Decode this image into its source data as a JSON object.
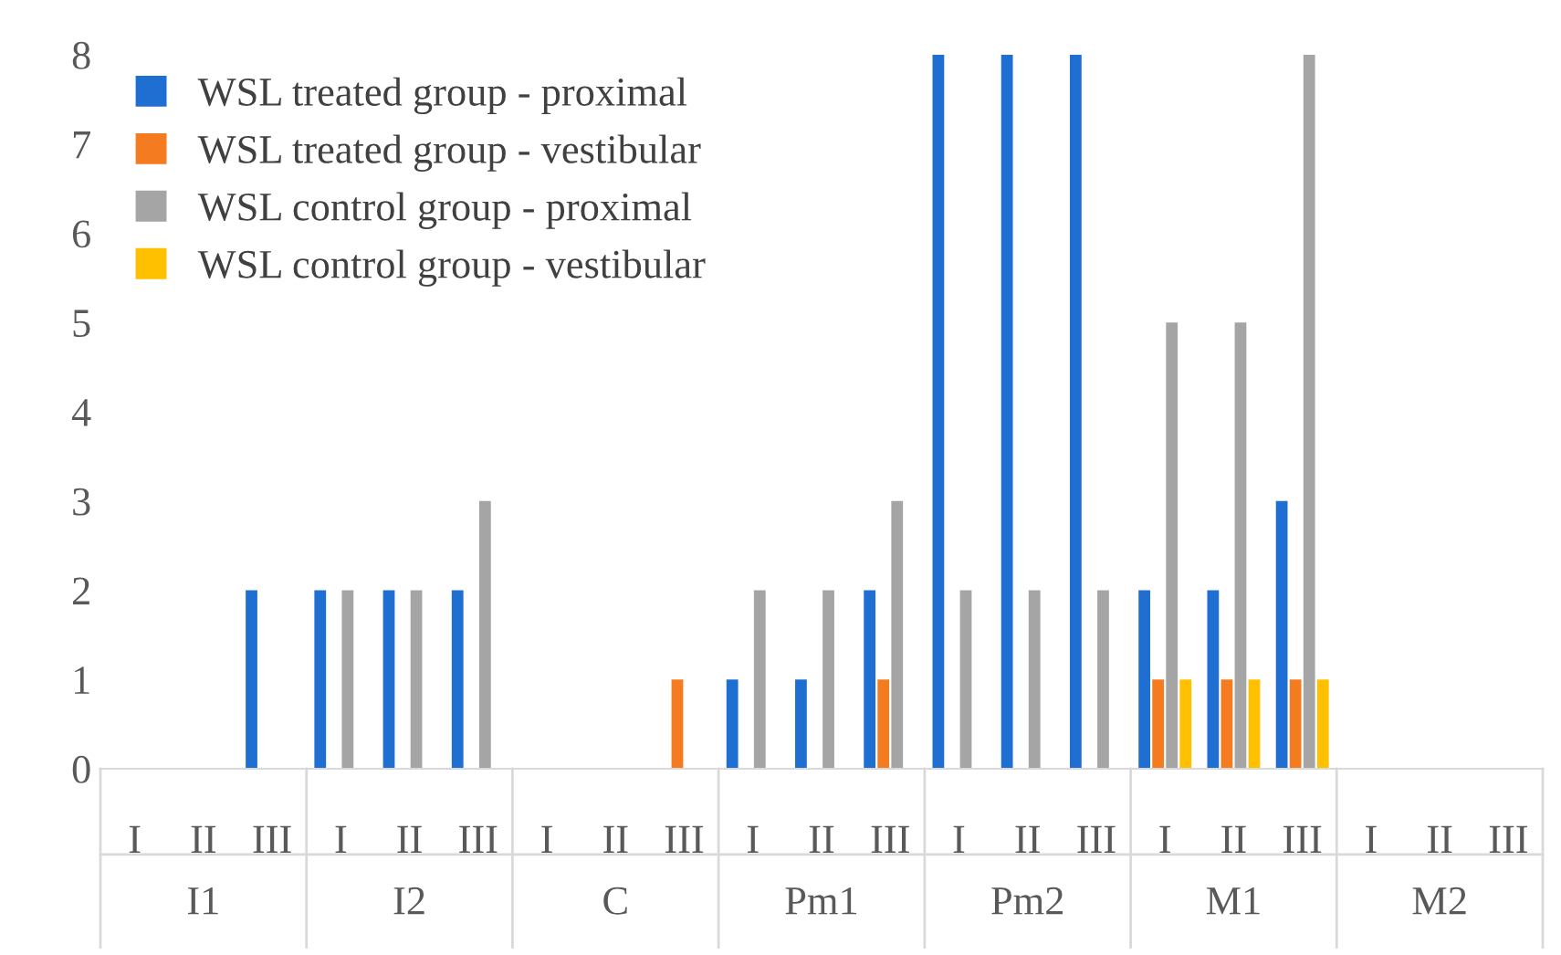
{
  "chart_data": {
    "type": "bar",
    "categories": [
      "I",
      "II",
      "III",
      "I",
      "II",
      "III",
      "I",
      "II",
      "III",
      "I",
      "II",
      "III",
      "I",
      "II",
      "III",
      "I",
      "II",
      "III",
      "I",
      "II",
      "III"
    ],
    "annotations": [
      "I1",
      "I2",
      "C",
      "Pm1",
      "Pm2",
      "M1",
      "M2"
    ],
    "series": [
      {
        "name": "WSL treated group - proximal",
        "color": "#1f6fd2",
        "values": [
          null,
          null,
          2,
          2,
          2,
          2,
          null,
          null,
          null,
          1,
          1,
          2,
          8,
          8,
          8,
          2,
          2,
          3,
          null,
          null,
          null
        ]
      },
      {
        "name": "WSL treated group - vestibular",
        "color": "#f47b20",
        "values": [
          null,
          null,
          null,
          null,
          null,
          null,
          null,
          null,
          1,
          null,
          null,
          1,
          null,
          null,
          null,
          1,
          1,
          1,
          null,
          null,
          null
        ]
      },
      {
        "name": "WSL control group - proximal",
        "color": "#a5a5a5",
        "values": [
          null,
          null,
          null,
          2,
          2,
          3,
          null,
          null,
          null,
          2,
          2,
          3,
          2,
          2,
          2,
          5,
          5,
          8,
          null,
          null,
          null
        ]
      },
      {
        "name": "WSL control group - vestibular",
        "color": "#ffc000",
        "values": [
          null,
          null,
          null,
          null,
          null,
          null,
          null,
          null,
          null,
          null,
          null,
          null,
          null,
          null,
          null,
          1,
          1,
          1,
          null,
          null,
          null
        ]
      }
    ],
    "ylim": [
      0,
      8
    ],
    "yticks": [
      0,
      1,
      2,
      3,
      4,
      5,
      6,
      7,
      8
    ],
    "grid": false,
    "legend": "top left"
  }
}
